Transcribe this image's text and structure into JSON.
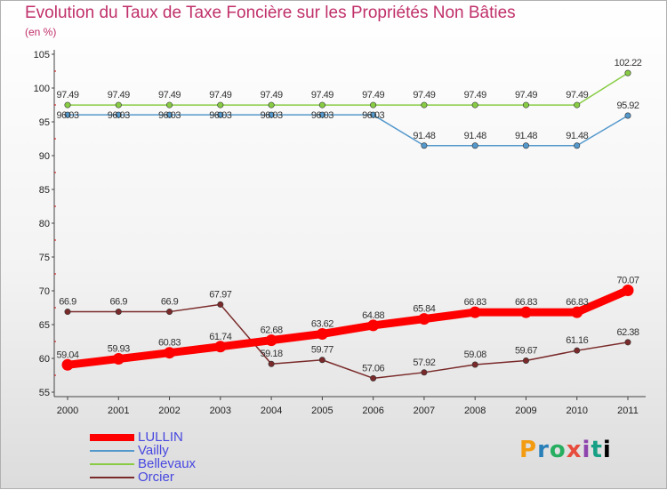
{
  "header": {
    "title": "Evolution du Taux de Taxe Foncière sur les Propriétés Non Bâties",
    "subtitle": "(en %)"
  },
  "brand": {
    "text": "Proxiti"
  },
  "chart_data": {
    "type": "line",
    "title": "Evolution du Taux de Taxe Foncière sur les Propriétés Non Bâties",
    "ylabel": "(en %)",
    "xlabel": "",
    "ylim": [
      55,
      105
    ],
    "yticks": [
      55,
      60,
      65,
      70,
      75,
      80,
      85,
      90,
      95,
      100,
      105
    ],
    "grid": false,
    "legend_position": "bottom-left",
    "categories": [
      "2000",
      "2001",
      "2002",
      "2003",
      "2004",
      "2005",
      "2006",
      "2007",
      "2008",
      "2009",
      "2010",
      "2011"
    ],
    "series": [
      {
        "name": "LULLIN",
        "color": "#ff0000",
        "values": [
          59.04,
          59.93,
          60.83,
          61.74,
          62.68,
          63.62,
          64.88,
          65.84,
          66.83,
          66.83,
          66.83,
          70.07
        ],
        "labels": [
          "59.04",
          "59.93",
          "60.83",
          "61.74",
          "62.68",
          "63.62",
          "64.88",
          "65.84",
          "66.83",
          "66.83",
          "66.83",
          "70.07"
        ]
      },
      {
        "name": "Vailly",
        "color": "#5599cc",
        "values": [
          96.03,
          96.03,
          96.03,
          96.03,
          96.03,
          96.03,
          96.03,
          91.48,
          91.48,
          91.48,
          91.48,
          95.92
        ],
        "labels": [
          "96.03",
          "96.03",
          "96.03",
          "96.03",
          "96.03",
          "96.03",
          "96.03",
          "91.48",
          "91.48",
          "91.48",
          "91.48",
          "95.92"
        ]
      },
      {
        "name": "Bellevaux",
        "color": "#88cc44",
        "values": [
          97.49,
          97.49,
          97.49,
          97.49,
          97.49,
          97.49,
          97.49,
          97.49,
          97.49,
          97.49,
          97.49,
          102.22
        ],
        "labels": [
          "97.49",
          "97.49",
          "97.49",
          "97.49",
          "97.49",
          "97.49",
          "97.49",
          "97.49",
          "97.49",
          "97.49",
          "97.49",
          "102.22"
        ]
      },
      {
        "name": "Orcier",
        "color": "#7a2a2a",
        "values": [
          66.9,
          66.9,
          66.9,
          67.97,
          59.18,
          59.77,
          57.06,
          57.92,
          59.08,
          59.67,
          61.16,
          62.38
        ],
        "labels": [
          "66.9",
          "66.9",
          "66.9",
          "67.97",
          "59.18",
          "59.77",
          "57.06",
          "57.92",
          "59.08",
          "59.67",
          "61.16",
          "62.38"
        ]
      }
    ]
  }
}
